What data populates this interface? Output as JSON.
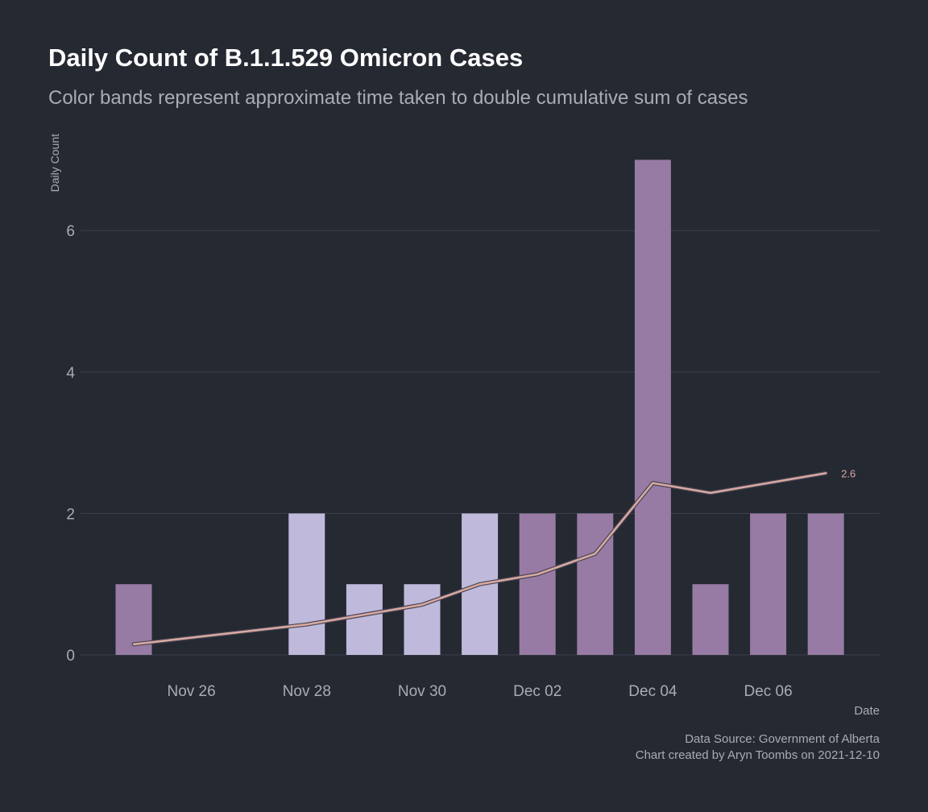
{
  "title": "Daily Count of B.1.1.529 Omicron Cases",
  "subtitle": "Color bands represent approximate time taken to double cumulative sum of cases",
  "caption": {
    "source": "Data Source: Government of Alberta",
    "credit": "Chart created by Aryn Toombs on 2021-12-10"
  },
  "colors": {
    "background": "#252932",
    "grid": "#3c404a",
    "axis_text": "#a9acb2",
    "band_dark": "#977ba4",
    "band_light": "#bfbadb",
    "line": "#d7a9a2",
    "line_outline": "#4a4452"
  },
  "chart_data": {
    "type": "bar",
    "title": "Daily Count of B.1.1.529 Omicron Cases",
    "subtitle": "Color bands represent approximate time taken to double cumulative sum of cases",
    "xlabel": "Date",
    "ylabel": "Daily Count",
    "x_ticks": [
      "Nov 26",
      "Nov 28",
      "Nov 30",
      "Dec 02",
      "Dec 04",
      "Dec 06"
    ],
    "x_tick_dates": [
      "2021-11-26",
      "2021-11-28",
      "2021-11-30",
      "2021-12-02",
      "2021-12-04",
      "2021-12-06"
    ],
    "y_ticks": [
      0,
      2,
      4,
      6
    ],
    "ylim": [
      0,
      7
    ],
    "grid": true,
    "legend": "none",
    "bars": [
      {
        "date": "2021-11-25",
        "value": 1,
        "band": "dark"
      },
      {
        "date": "2021-11-28",
        "value": 2,
        "band": "light"
      },
      {
        "date": "2021-11-29",
        "value": 1,
        "band": "light"
      },
      {
        "date": "2021-11-30",
        "value": 1,
        "band": "light"
      },
      {
        "date": "2021-12-01",
        "value": 2,
        "band": "light"
      },
      {
        "date": "2021-12-02",
        "value": 2,
        "band": "dark"
      },
      {
        "date": "2021-12-03",
        "value": 2,
        "band": "dark"
      },
      {
        "date": "2021-12-04",
        "value": 7,
        "band": "dark"
      },
      {
        "date": "2021-12-05",
        "value": 1,
        "band": "dark"
      },
      {
        "date": "2021-12-06",
        "value": 2,
        "band": "dark"
      },
      {
        "date": "2021-12-07",
        "value": 2,
        "band": "dark"
      }
    ],
    "line": [
      {
        "date": "2021-11-25",
        "value": 0.15
      },
      {
        "date": "2021-11-28",
        "value": 0.43
      },
      {
        "date": "2021-11-29",
        "value": 0.57
      },
      {
        "date": "2021-11-30",
        "value": 0.71
      },
      {
        "date": "2021-12-01",
        "value": 1.0
      },
      {
        "date": "2021-12-02",
        "value": 1.14
      },
      {
        "date": "2021-12-03",
        "value": 1.43
      },
      {
        "date": "2021-12-04",
        "value": 2.43
      },
      {
        "date": "2021-12-05",
        "value": 2.29
      },
      {
        "date": "2021-12-06",
        "value": 2.43
      },
      {
        "date": "2021-12-07",
        "value": 2.57
      }
    ],
    "end_label": "2.6"
  }
}
